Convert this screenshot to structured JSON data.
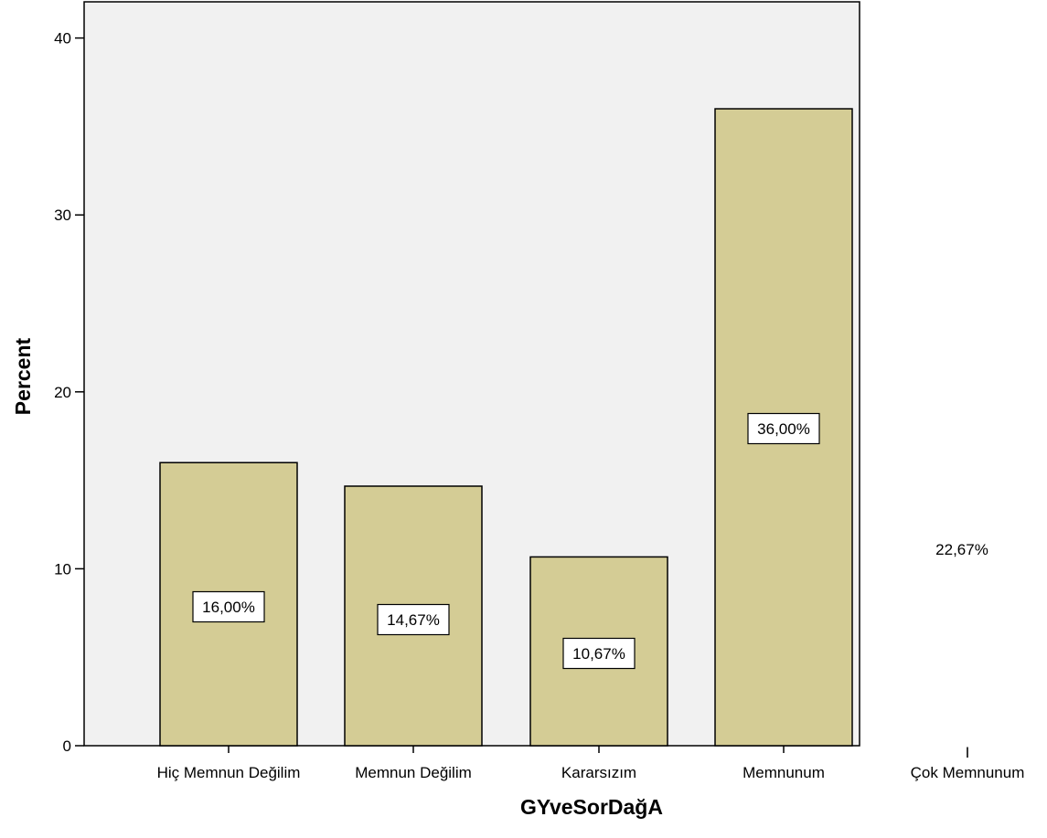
{
  "chart_data": {
    "type": "bar",
    "categories": [
      "Hiç Memnun Değilim",
      "Memnun Değilim",
      "Kararsızım",
      "Memnunum"
    ],
    "values": [
      16.0,
      14.67,
      10.67,
      36.0
    ],
    "data_labels": [
      "16,00%",
      "14,67%",
      "10,67%",
      "36,00%"
    ],
    "xlabel": "GYveSorDağA",
    "ylabel": "Percent",
    "ylim": [
      0,
      40
    ],
    "yticks": [
      0,
      10,
      20,
      30,
      40
    ],
    "ytick_labels": [
      "0",
      "10",
      "20",
      "30",
      "40"
    ],
    "grid": false,
    "colors": {
      "bar_fill": "#d4cc95",
      "plot_background": "#f1f1f1",
      "outline": "#000000"
    },
    "outside_category": {
      "label": "Çok Memnunum",
      "value": 22.67,
      "data_label": "22,67%",
      "tick_mark": "I"
    }
  }
}
